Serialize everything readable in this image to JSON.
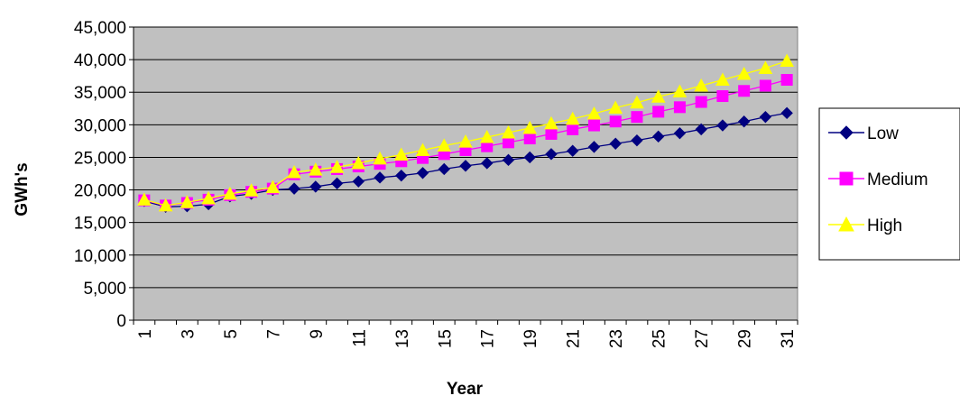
{
  "chart_data": {
    "type": "line",
    "title": "",
    "xlabel": "Year",
    "ylabel": "GWh's",
    "ylim": [
      0,
      45000
    ],
    "ytick_step": 5000,
    "yticks": [
      "0",
      "5,000",
      "10,000",
      "15,000",
      "20,000",
      "25,000",
      "30,000",
      "35,000",
      "40,000",
      "45,000"
    ],
    "x": [
      1,
      2,
      3,
      4,
      5,
      6,
      7,
      8,
      9,
      10,
      11,
      12,
      13,
      14,
      15,
      16,
      17,
      18,
      19,
      20,
      21,
      22,
      23,
      24,
      25,
      26,
      27,
      28,
      29,
      30,
      31
    ],
    "xticks": [
      "1",
      "3",
      "5",
      "7",
      "9",
      "11",
      "13",
      "15",
      "17",
      "19",
      "21",
      "23",
      "25",
      "27",
      "29",
      "31"
    ],
    "grid": true,
    "plot_background": "#c0c0c0",
    "legend_position": "right",
    "series": [
      {
        "name": "Low",
        "color": "#000080",
        "marker": "diamond",
        "values": [
          18300,
          17400,
          17500,
          17800,
          19000,
          19400,
          20000,
          20200,
          20500,
          21000,
          21300,
          21900,
          22200,
          22600,
          23200,
          23700,
          24100,
          24600,
          25000,
          25500,
          26000,
          26600,
          27100,
          27600,
          28200,
          28700,
          29300,
          29900,
          30500,
          31200,
          31800
        ]
      },
      {
        "name": "Medium",
        "color": "#ff00ff",
        "marker": "square",
        "values": [
          18400,
          17600,
          18000,
          18500,
          19200,
          19700,
          20200,
          22400,
          22800,
          23200,
          23600,
          24000,
          24400,
          24900,
          25500,
          26100,
          26700,
          27300,
          27900,
          28600,
          29300,
          29900,
          30500,
          31200,
          32000,
          32700,
          33500,
          34400,
          35200,
          36000,
          36900
        ]
      },
      {
        "name": "High",
        "color": "#ffff00",
        "marker": "triangle",
        "values": [
          18500,
          17600,
          18100,
          18700,
          19400,
          19900,
          20400,
          22700,
          23100,
          23500,
          24100,
          24800,
          25400,
          26100,
          26800,
          27400,
          28100,
          28800,
          29500,
          30200,
          30900,
          31700,
          32600,
          33400,
          34300,
          35100,
          36000,
          36900,
          37800,
          38700,
          39800
        ]
      }
    ]
  }
}
